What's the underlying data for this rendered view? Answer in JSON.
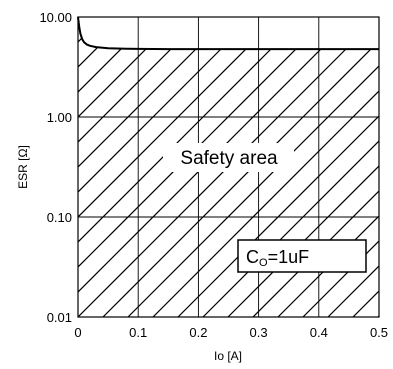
{
  "chart_data": {
    "type": "line",
    "title": "",
    "xlabel": "Io [A]",
    "ylabel": "ESR [Ω]",
    "xlim": [
      0,
      0.5
    ],
    "ylim": [
      0.01,
      10
    ],
    "yscale": "log",
    "grid": true,
    "x_ticks": [
      {
        "value": 0,
        "label": "0"
      },
      {
        "value": 0.1,
        "label": "0.1"
      },
      {
        "value": 0.2,
        "label": "0.2"
      },
      {
        "value": 0.3,
        "label": "0.3"
      },
      {
        "value": 0.4,
        "label": "0.4"
      },
      {
        "value": 0.5,
        "label": "0.5"
      }
    ],
    "y_ticks": [
      {
        "value": 0.01,
        "label": "0.01"
      },
      {
        "value": 0.1,
        "label": "0.10"
      },
      {
        "value": 1,
        "label": "1.00"
      },
      {
        "value": 10,
        "label": "10.00"
      }
    ],
    "series": [
      {
        "x": [
          0.0,
          0.002,
          0.004,
          0.007,
          0.01,
          0.015,
          0.02,
          0.03,
          0.05,
          0.08,
          0.1,
          0.15,
          0.2,
          0.3,
          0.4,
          0.5
        ],
        "y": [
          10.0,
          8.0,
          6.8,
          6.0,
          5.6,
          5.3,
          5.15,
          5.0,
          4.88,
          4.82,
          4.8,
          4.78,
          4.78,
          4.78,
          4.78,
          4.78
        ]
      }
    ],
    "shaded_region": "hatched area below the ESR curve",
    "annotations": [
      {
        "text": "Safety area",
        "x": 0.24,
        "y": 0.5
      }
    ],
    "legend": {
      "main": "C",
      "subscript": "O",
      "suffix": "=1uF",
      "placement": "bottom-right"
    }
  }
}
